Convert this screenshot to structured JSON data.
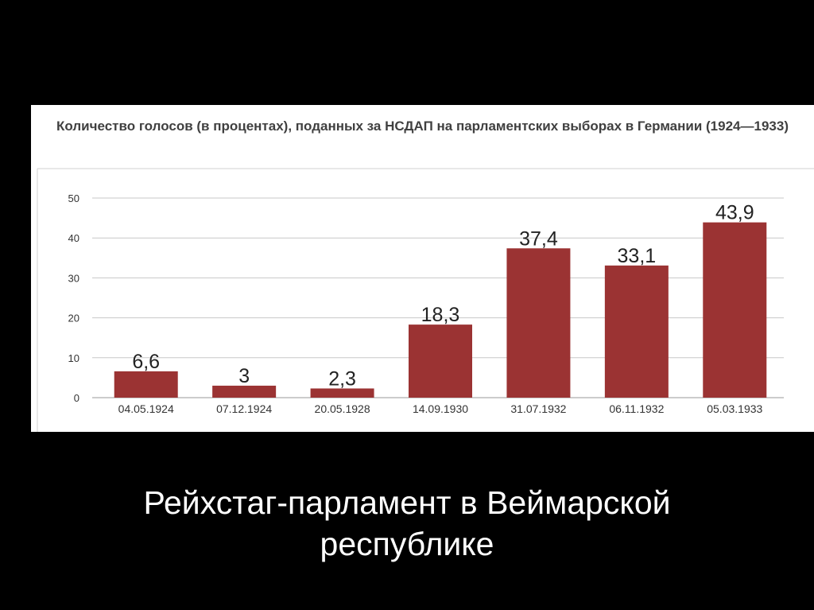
{
  "colors": {
    "background": "#000000",
    "panel": "#ffffff",
    "bar": "#9b3333",
    "grid": "#c8c8c8",
    "title": "#404040",
    "caption": "#ffffff"
  },
  "chart_data": {
    "type": "bar",
    "title": "Количество голосов (в процентах), поданных за НСДАП на парламентских выборах в Германии (1924—1933)",
    "categories": [
      "04.05.1924",
      "07.12.1924",
      "20.05.1928",
      "14.09.1930",
      "31.07.1932",
      "06.11.1932",
      "05.03.1933"
    ],
    "values": [
      6.6,
      3,
      2.3,
      18.3,
      37.4,
      33.1,
      43.9
    ],
    "value_labels": [
      "6,6",
      "3",
      "2,3",
      "18,3",
      "37,4",
      "33,1",
      "43,9"
    ],
    "ylim": [
      0,
      50
    ],
    "yticks": [
      0,
      10,
      20,
      30,
      40,
      50
    ],
    "grid": true,
    "legend": "none"
  },
  "caption": {
    "line1": "Рейхстаг-парламент в Веймарской",
    "line2": "республике"
  }
}
